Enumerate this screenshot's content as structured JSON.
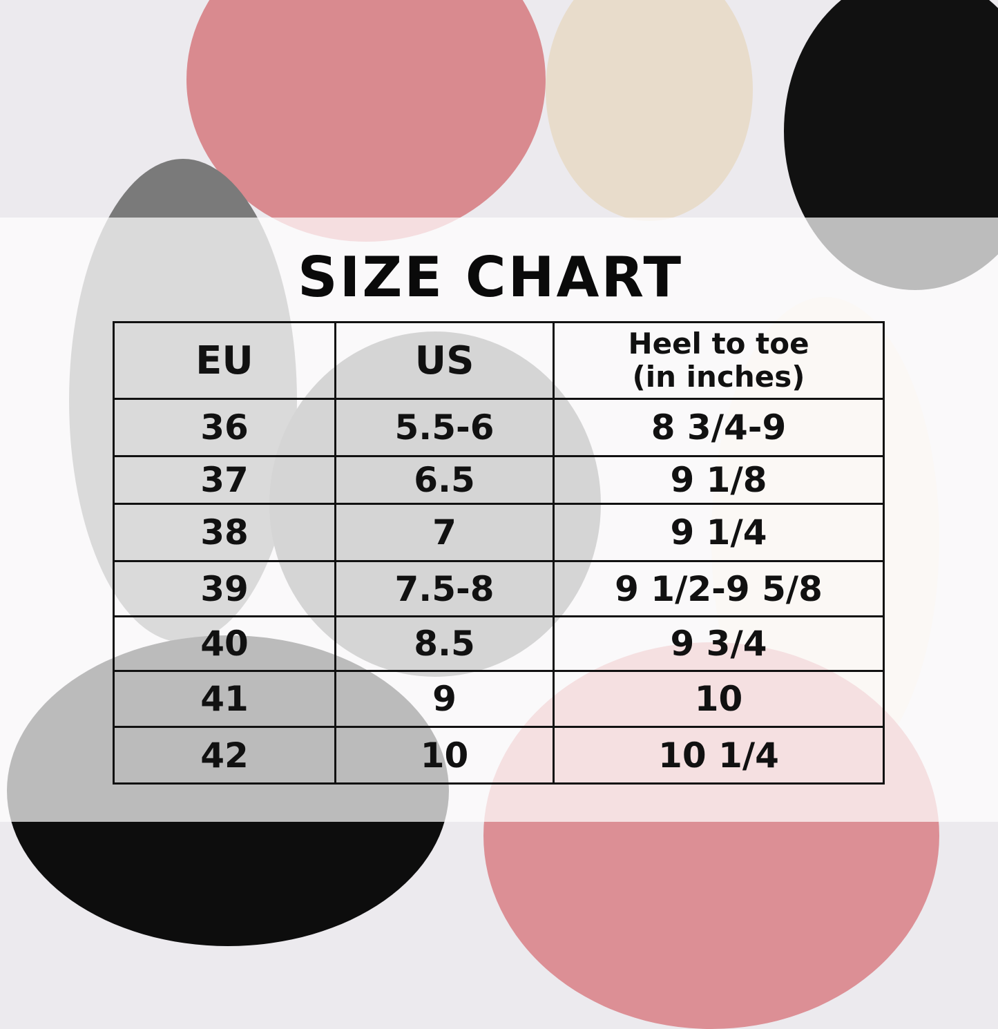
{
  "title": "SIZE CHART",
  "table": {
    "headers": [
      "EU",
      "US",
      "Heel to toe\n(in inches)"
    ],
    "header_line1": "Heel to toe",
    "header_line2": "(in inches)",
    "rows": [
      [
        "36",
        "5.5-6",
        "8 3/4-9"
      ],
      [
        "37",
        "6.5",
        "9 1/8"
      ],
      [
        "38",
        "7",
        "9 1/4"
      ],
      [
        "39",
        "7.5-8",
        "9 1/2-9 5/8"
      ],
      [
        "40",
        "8.5",
        "9 3/4"
      ],
      [
        "41",
        "9",
        "10"
      ],
      [
        "42",
        "10",
        "10 1/4"
      ]
    ]
  }
}
